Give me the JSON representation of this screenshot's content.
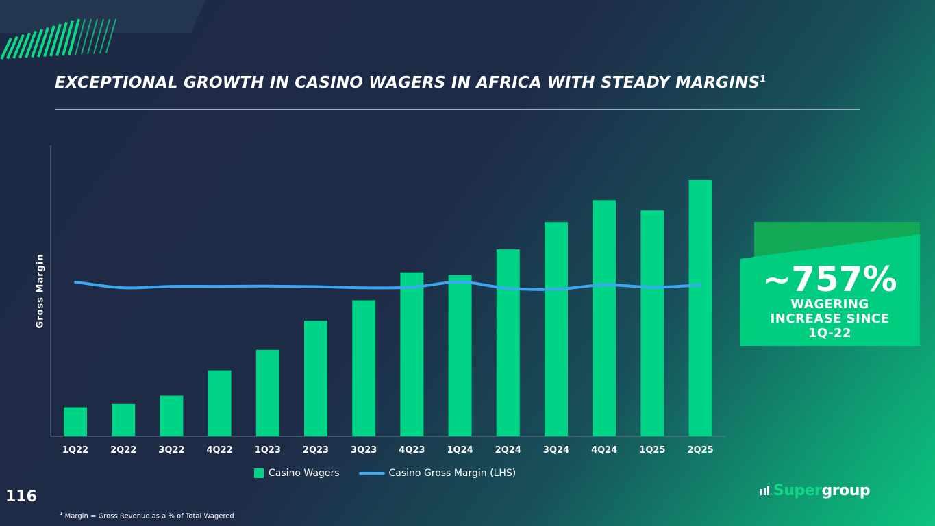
{
  "slide": {
    "title": "EXCEPTIONAL GROWTH IN CASINO WAGERS IN AFRICA WITH STEADY MARGINS",
    "title_superscript": "1",
    "page_number": "116",
    "footnote_marker": "1",
    "footnote": " Margin = Gross Revenue as a % of Total Wagered"
  },
  "callout": {
    "value": "~757%",
    "text_line1": "WAGERING",
    "text_line2": "INCREASE SINCE",
    "text_line3": "1Q-22"
  },
  "logo": {
    "part1": "Super",
    "part2": "group"
  },
  "colors": {
    "bar": "#00d486",
    "line": "#3ca8f2",
    "callout": "#00cc80",
    "callout_back": "#13a956",
    "accent_stripes": "#0fd884"
  },
  "chart_data": {
    "type": "bar",
    "categories": [
      "1Q22",
      "2Q22",
      "3Q22",
      "4Q22",
      "1Q23",
      "2Q23",
      "3Q23",
      "4Q23",
      "1Q24",
      "2Q24",
      "3Q24",
      "4Q24",
      "1Q25",
      "2Q25"
    ],
    "ylabel": "Gross Margin",
    "series": [
      {
        "name": "Casino Wagers",
        "kind": "bar",
        "values": [
          1.0,
          1.11,
          1.4,
          2.27,
          2.97,
          3.97,
          4.67,
          5.63,
          5.53,
          6.42,
          7.36,
          8.11,
          7.76,
          8.8
        ]
      },
      {
        "name": "Casino Gross Margin (LHS)",
        "kind": "line",
        "values": [
          5.3,
          5.1,
          5.15,
          5.15,
          5.16,
          5.14,
          5.1,
          5.12,
          5.3,
          5.08,
          5.05,
          5.2,
          5.12,
          5.2
        ]
      }
    ],
    "ylim": [
      0,
      10
    ],
    "grid": false,
    "legend_position": "bottom"
  }
}
